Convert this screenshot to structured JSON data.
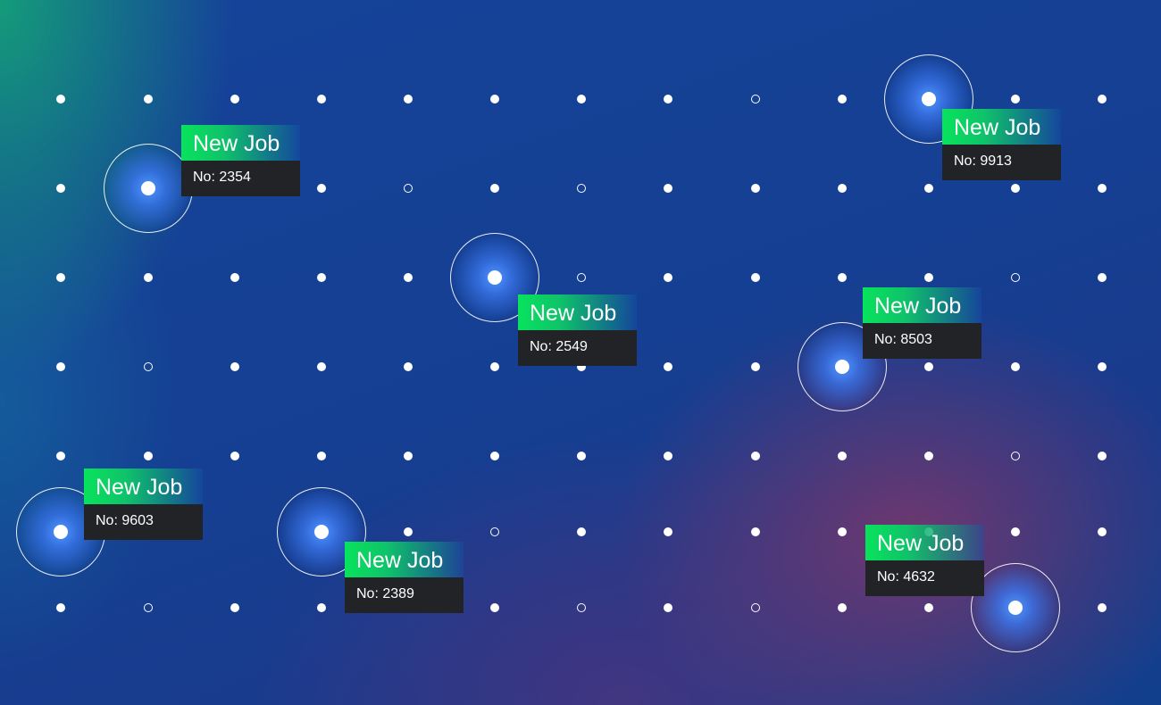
{
  "job_card": {
    "title": "New Job",
    "number_prefix": "No: "
  },
  "jobs": [
    {
      "number": "2354"
    },
    {
      "number": "9913"
    },
    {
      "number": "2549"
    },
    {
      "number": "8503"
    },
    {
      "number": "9603"
    },
    {
      "number": "2389"
    },
    {
      "number": "4632"
    }
  ],
  "colors": {
    "accent_green": "#08e35c",
    "card_body": "#222327",
    "background_blue": "#15449a",
    "glow_magenta": "#7d3769"
  }
}
